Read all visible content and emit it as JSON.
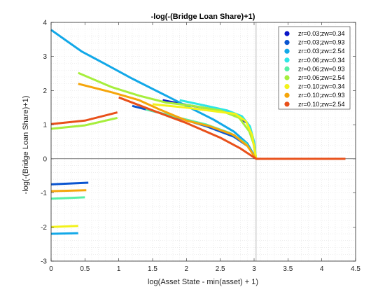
{
  "chart_data": {
    "type": "line",
    "title": "-log(-(Bridge Loan Share)+1)",
    "xlabel": "log(Asset State - min(asset) + 1)",
    "ylabel": "-log(-(Bridge Loan Share)+1)",
    "xlim": [
      0,
      4.5
    ],
    "ylim": [
      -3,
      4
    ],
    "xticks": [
      0,
      0.5,
      1,
      1.5,
      2,
      2.5,
      3,
      3.5,
      4,
      4.5
    ],
    "yticks": [
      -3,
      -2,
      -1,
      0,
      1,
      2,
      3,
      4
    ],
    "xtick_labels": [
      "0",
      "0.5",
      "1",
      "1.5",
      "2",
      "2.5",
      "3",
      "3.5",
      "4",
      "4.5"
    ],
    "ytick_labels": [
      "-3",
      "-2",
      "-1",
      "0",
      "1",
      "2",
      "3",
      "4"
    ],
    "grid": "minor dotted",
    "reference_lines": {
      "y": 0,
      "x": 3.03
    },
    "legend_position": "top-right",
    "series": [
      {
        "name": "zr=0.03;zw=0.34",
        "color": "#0a16c8",
        "segments": [
          [
            [
              1.65,
              1.72
            ],
            [
              2.0,
              1.58
            ],
            [
              2.4,
              1.45
            ],
            [
              2.7,
              1.3
            ],
            [
              2.9,
              1.05
            ],
            [
              2.97,
              0.7
            ],
            [
              3.0,
              0.35
            ],
            [
              3.03,
              0.0
            ]
          ]
        ]
      },
      {
        "name": "zr=0.03;zw=0.93",
        "color": "#0a55d0",
        "segments": [
          [
            [
              0.0,
              -0.75
            ],
            [
              0.55,
              -0.7
            ]
          ],
          [
            [
              1.2,
              1.55
            ],
            [
              1.8,
              1.25
            ],
            [
              2.3,
              0.95
            ],
            [
              2.7,
              0.65
            ],
            [
              2.92,
              0.35
            ],
            [
              3.03,
              0.0
            ]
          ]
        ]
      },
      {
        "name": "zr=0.03;zw=2.54",
        "color": "#12a8e8",
        "segments": [
          [
            [
              0.0,
              3.78
            ],
            [
              0.2,
              3.5
            ],
            [
              0.45,
              3.15
            ],
            [
              0.8,
              2.78
            ],
            [
              1.2,
              2.35
            ],
            [
              1.6,
              1.95
            ],
            [
              2.0,
              1.55
            ],
            [
              2.4,
              1.15
            ],
            [
              2.7,
              0.8
            ],
            [
              2.9,
              0.45
            ],
            [
              3.03,
              0.0
            ]
          ],
          [
            [
              0.0,
              -2.2
            ],
            [
              0.4,
              -2.18
            ]
          ]
        ]
      },
      {
        "name": "zr=0.06;zw=0.34",
        "color": "#2ee6e6",
        "segments": [
          [
            [
              1.9,
              1.72
            ],
            [
              2.3,
              1.55
            ],
            [
              2.6,
              1.42
            ],
            [
              2.82,
              1.25
            ],
            [
              2.94,
              0.95
            ],
            [
              3.0,
              0.5
            ],
            [
              3.03,
              0.0
            ]
          ]
        ]
      },
      {
        "name": "zr=0.06;zw=0.93",
        "color": "#57f0a5",
        "segments": [
          [
            [
              0.0,
              -1.17
            ],
            [
              0.5,
              -1.13
            ]
          ],
          [
            [
              1.4,
              1.45
            ],
            [
              1.9,
              1.2
            ],
            [
              2.3,
              1.0
            ],
            [
              2.65,
              0.75
            ],
            [
              2.88,
              0.45
            ],
            [
              3.03,
              0.0
            ]
          ]
        ]
      },
      {
        "name": "zr=0.06;zw=2.54",
        "color": "#a6ee3c",
        "segments": [
          [
            [
              0.0,
              0.88
            ],
            [
              0.5,
              0.98
            ],
            [
              0.98,
              1.2
            ]
          ],
          [
            [
              0.4,
              2.52
            ],
            [
              0.9,
              2.1
            ],
            [
              1.3,
              1.85
            ],
            [
              1.7,
              1.65
            ],
            [
              2.1,
              1.55
            ],
            [
              2.5,
              1.42
            ],
            [
              2.78,
              1.2
            ],
            [
              2.93,
              0.8
            ],
            [
              3.0,
              0.4
            ],
            [
              3.03,
              0.0
            ]
          ]
        ]
      },
      {
        "name": "zr=0.10;zw=0.34",
        "color": "#f2f21a",
        "segments": [
          [
            [
              0.0,
              -2.0
            ],
            [
              0.4,
              -1.97
            ]
          ],
          [
            [
              1.5,
              1.6
            ],
            [
              2.0,
              1.5
            ],
            [
              2.4,
              1.4
            ],
            [
              2.72,
              1.32
            ],
            [
              2.88,
              1.1
            ],
            [
              2.97,
              0.7
            ],
            [
              3.0,
              0.35
            ],
            [
              3.03,
              0.0
            ]
          ]
        ]
      },
      {
        "name": "zr=0.10;zw=0.93",
        "color": "#f5a50a",
        "segments": [
          [
            [
              0.0,
              -0.95
            ],
            [
              0.52,
              -0.92
            ]
          ],
          [
            [
              0.4,
              2.2
            ],
            [
              0.9,
              1.95
            ],
            [
              1.3,
              1.72
            ],
            [
              1.6,
              1.45
            ],
            [
              2.0,
              1.12
            ],
            [
              2.35,
              0.95
            ],
            [
              2.7,
              0.7
            ],
            [
              2.9,
              0.38
            ],
            [
              3.03,
              0.0
            ]
          ]
        ]
      },
      {
        "name": "zr=0.10;zw=2.54",
        "color": "#e8501a",
        "segments": [
          [
            [
              0.0,
              1.02
            ],
            [
              0.5,
              1.12
            ],
            [
              0.98,
              1.36
            ]
          ],
          [
            [
              1.0,
              1.8
            ],
            [
              1.5,
              1.42
            ],
            [
              2.0,
              1.05
            ],
            [
              2.5,
              0.62
            ],
            [
              2.8,
              0.3
            ],
            [
              3.03,
              0.0
            ],
            [
              4.35,
              0.0
            ]
          ]
        ]
      }
    ]
  }
}
